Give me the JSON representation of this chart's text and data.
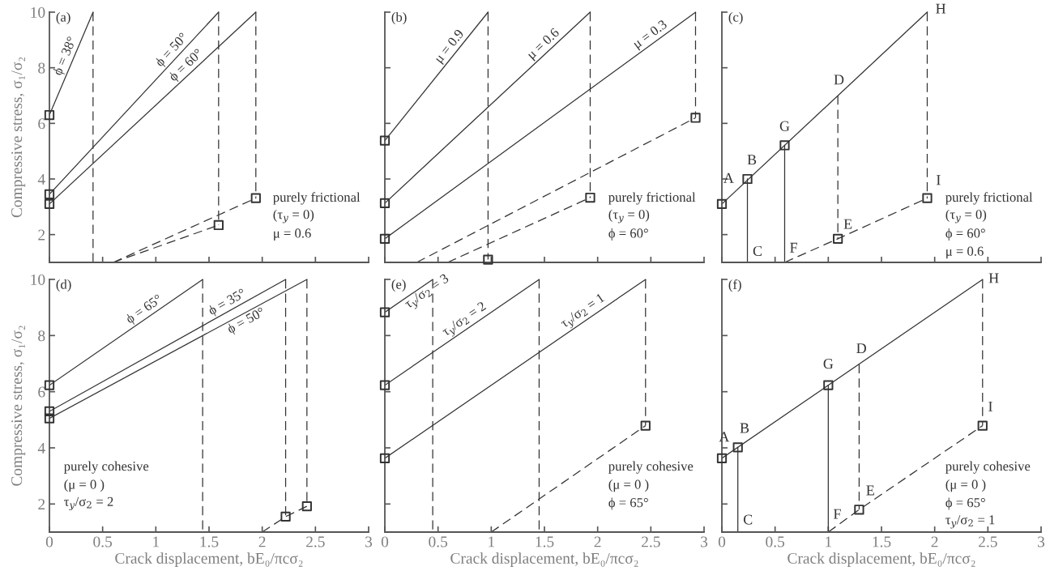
{
  "chart_data": [
    {
      "type": "line",
      "title": "(a)",
      "ylabel": "Compressive stress, σ₁/σ₂",
      "xlim": [
        0,
        3
      ],
      "ylim": [
        1,
        10
      ],
      "xticks": [
        0,
        0.5,
        1,
        1.5,
        2,
        2.5,
        3
      ],
      "yticks": [
        2,
        4,
        6,
        8,
        10
      ],
      "tick_labels": "y",
      "series": [
        {
          "name": "ϕ = 38°",
          "type": "line",
          "line_style": "solid",
          "color": "#333333",
          "x": [
            0,
            0.41
          ],
          "values": [
            6.3,
            10
          ]
        },
        {
          "name": "ϕ = 50°",
          "type": "line",
          "line_style": "solid",
          "color": "#333333",
          "x": [
            0,
            1.59
          ],
          "values": [
            3.45,
            10
          ]
        },
        {
          "name": "ϕ = 60°",
          "type": "line",
          "line_style": "solid",
          "color": "#333333",
          "x": [
            0,
            1.94
          ],
          "values": [
            3.1,
            10
          ]
        },
        {
          "type": "line",
          "line_style": "dashed",
          "color": "#333333",
          "x": [
            0.41,
            0.41
          ],
          "values": [
            10,
            1
          ]
        },
        {
          "type": "line",
          "line_style": "dashed",
          "color": "#333333",
          "x": [
            1.59,
            1.59
          ],
          "values": [
            10,
            2.34
          ]
        },
        {
          "type": "line",
          "line_style": "dashed",
          "color": "#333333",
          "x": [
            1.94,
            1.94
          ],
          "values": [
            10,
            3.31
          ]
        },
        {
          "type": "line",
          "line_style": "dashed",
          "color": "#333333",
          "x": [
            0.6,
            1.59
          ],
          "values": [
            1,
            2.34
          ]
        },
        {
          "type": "line",
          "line_style": "dashed",
          "color": "#333333",
          "x": [
            0.6,
            1.94
          ],
          "values": [
            1,
            3.31
          ]
        },
        {
          "type": "scatter",
          "marker": "square",
          "color": "#333333",
          "x": [
            0,
            0,
            0,
            1.59,
            1.94
          ],
          "values": [
            6.3,
            3.45,
            3.1,
            2.34,
            3.31
          ]
        }
      ],
      "annotations": [
        "purely frictional",
        "(τ$_{y}$ = 0)",
        "μ = 0.6"
      ]
    },
    {
      "type": "line",
      "title": "(b)",
      "xlim": [
        0,
        3
      ],
      "ylim": [
        1,
        10
      ],
      "xticks": [
        0,
        0.5,
        1,
        1.5,
        2,
        2.5,
        3
      ],
      "yticks": [
        2,
        4,
        6,
        8,
        10
      ],
      "tick_labels": false,
      "series": [
        {
          "name": "μ = 0.9",
          "type": "line",
          "line_style": "solid",
          "color": "#333333",
          "x": [
            0,
            0.97
          ],
          "values": [
            5.38,
            10
          ]
        },
        {
          "name": "μ = 0.6",
          "type": "line",
          "line_style": "solid",
          "color": "#333333",
          "x": [
            0,
            1.93
          ],
          "values": [
            3.13,
            10
          ]
        },
        {
          "name": "μ = 0.3",
          "type": "line",
          "line_style": "solid",
          "color": "#333333",
          "x": [
            0,
            2.92
          ],
          "values": [
            1.85,
            10
          ]
        },
        {
          "type": "line",
          "line_style": "dashed",
          "color": "#333333",
          "x": [
            0.97,
            0.97
          ],
          "values": [
            10,
            1.1
          ]
        },
        {
          "type": "line",
          "line_style": "dashed",
          "color": "#333333",
          "x": [
            1.93,
            1.93
          ],
          "values": [
            10,
            3.33
          ]
        },
        {
          "type": "line",
          "line_style": "dashed",
          "color": "#333333",
          "x": [
            2.92,
            2.92
          ],
          "values": [
            10,
            6.2
          ]
        },
        {
          "type": "line",
          "line_style": "dashed",
          "color": "#333333",
          "x": [
            0.59,
            1.93
          ],
          "values": [
            1,
            3.33
          ]
        },
        {
          "type": "line",
          "line_style": "dashed",
          "color": "#333333",
          "x": [
            0.3,
            2.92
          ],
          "values": [
            1,
            6.2
          ]
        },
        {
          "type": "scatter",
          "marker": "square",
          "color": "#333333",
          "x": [
            0,
            0,
            0,
            0.97,
            1.93,
            2.92
          ],
          "values": [
            5.38,
            3.13,
            1.85,
            1.1,
            3.33,
            6.2
          ]
        }
      ],
      "annotations": [
        "purely frictional",
        "(τ$_{y}$ = 0)",
        "ϕ = 60°"
      ]
    },
    {
      "type": "line",
      "title": "(c)",
      "xlim": [
        0,
        3
      ],
      "ylim": [
        1,
        10
      ],
      "xticks": [
        0,
        0.5,
        1,
        1.5,
        2,
        2.5,
        3
      ],
      "yticks": [
        2,
        4,
        6,
        8,
        10
      ],
      "tick_labels": false,
      "series": [
        {
          "type": "line",
          "line_style": "solid",
          "color": "#333333",
          "x": [
            0,
            1.93
          ],
          "values": [
            3.1,
            10
          ]
        },
        {
          "type": "line",
          "line_style": "solid",
          "color": "#333333",
          "x": [
            0.24,
            0.24
          ],
          "values": [
            4.0,
            1
          ]
        },
        {
          "type": "line",
          "line_style": "solid",
          "color": "#333333",
          "x": [
            0.59,
            0.59
          ],
          "values": [
            5.21,
            1
          ]
        },
        {
          "type": "line",
          "line_style": "dashed",
          "color": "#333333",
          "x": [
            1.09,
            1.09
          ],
          "values": [
            7.0,
            1.85
          ]
        },
        {
          "type": "line",
          "line_style": "dashed",
          "color": "#333333",
          "x": [
            1.93,
            1.93
          ],
          "values": [
            10,
            3.31
          ]
        },
        {
          "type": "line",
          "line_style": "dashed",
          "color": "#333333",
          "x": [
            0.59,
            1.09,
            1.93
          ],
          "values": [
            1,
            1.85,
            3.31
          ]
        },
        {
          "type": "scatter",
          "marker": "square",
          "color": "#333333",
          "x": [
            0,
            0.24,
            0.59,
            1.09,
            1.93
          ],
          "values": [
            3.1,
            4.0,
            5.21,
            1.85,
            3.31
          ]
        }
      ],
      "annotations": [
        {
          "text": "A",
          "x": 0,
          "y": 3.1
        },
        {
          "text": "B",
          "x": 0.24,
          "y": 4.0
        },
        {
          "text": "G",
          "x": 0.59,
          "y": 5.21
        },
        {
          "text": "D",
          "x": 1.09,
          "y": 7.0
        },
        {
          "text": "H",
          "x": 1.93,
          "y": 10
        },
        {
          "text": "I",
          "x": 1.93,
          "y": 3.31
        },
        {
          "text": "E",
          "x": 1.09,
          "y": 1.85
        },
        {
          "text": "C",
          "x": 0.24,
          "y": 1
        },
        {
          "text": "F",
          "x": 0.59,
          "y": 1
        },
        "purely frictional",
        "(τ$_{y}$ = 0)",
        "ϕ = 60°",
        "μ = 0.6"
      ]
    },
    {
      "type": "line",
      "title": "(d)",
      "xlabel": "Crack displacement, bE₀/πcσ₂",
      "ylabel": "Compressive stress, σ₁/σ₂",
      "xlim": [
        0,
        3
      ],
      "ylim": [
        1,
        10
      ],
      "xticks": [
        0,
        0.5,
        1,
        1.5,
        2,
        2.5,
        3
      ],
      "yticks": [
        2,
        4,
        6,
        8,
        10
      ],
      "series": [
        {
          "name": "ϕ = 65°",
          "type": "line",
          "line_style": "solid",
          "color": "#333333",
          "x": [
            0,
            1.44
          ],
          "values": [
            6.23,
            10
          ]
        },
        {
          "name": "ϕ = 35°",
          "type": "line",
          "line_style": "solid",
          "color": "#333333",
          "x": [
            0,
            2.22
          ],
          "values": [
            5.3,
            10
          ]
        },
        {
          "name": "ϕ = 50°",
          "type": "line",
          "line_style": "solid",
          "color": "#333333",
          "x": [
            0,
            2.42
          ],
          "values": [
            5.05,
            10
          ]
        },
        {
          "type": "line",
          "line_style": "dashed",
          "color": "#333333",
          "x": [
            1.44,
            1.44
          ],
          "values": [
            10,
            1
          ]
        },
        {
          "type": "line",
          "line_style": "dashed",
          "color": "#333333",
          "x": [
            2.22,
            2.22
          ],
          "values": [
            10,
            1.55
          ]
        },
        {
          "type": "line",
          "line_style": "dashed",
          "color": "#333333",
          "x": [
            2.42,
            2.42
          ],
          "values": [
            10,
            1.92
          ]
        },
        {
          "type": "line",
          "line_style": "dashed",
          "color": "#333333",
          "x": [
            2.0,
            2.22,
            2.42
          ],
          "values": [
            1,
            1.55,
            1.92
          ]
        },
        {
          "type": "scatter",
          "marker": "square",
          "color": "#333333",
          "x": [
            0,
            0,
            0,
            2.22,
            2.42
          ],
          "values": [
            6.23,
            5.3,
            5.05,
            1.55,
            1.92
          ]
        }
      ],
      "annotations": [
        "purely cohesive",
        "(μ = 0 )",
        "τ$_{y}$/σ$_{2}$ = 2"
      ]
    },
    {
      "type": "line",
      "title": "(e)",
      "xlabel": "Crack displacement, bE₀/πcσ₂",
      "xlim": [
        0,
        3
      ],
      "ylim": [
        1,
        10
      ],
      "xticks": [
        0,
        0.5,
        1,
        1.5,
        2,
        2.5,
        3
      ],
      "yticks": [
        2,
        4,
        6,
        8,
        10
      ],
      "tick_labels": "x",
      "series": [
        {
          "name": "τ$_{y}$/σ$_{2}$ = 3",
          "type": "line",
          "line_style": "solid",
          "color": "#333333",
          "x": [
            0,
            0.45
          ],
          "values": [
            8.83,
            10
          ]
        },
        {
          "name": "τ$_{y}$/σ$_{2}$ = 2",
          "type": "line",
          "line_style": "solid",
          "color": "#333333",
          "x": [
            0,
            1.45
          ],
          "values": [
            6.23,
            10
          ]
        },
        {
          "name": "τ$_{y}$/σ$_{2}$ = 1",
          "type": "line",
          "line_style": "solid",
          "color": "#333333",
          "x": [
            0,
            2.45
          ],
          "values": [
            3.63,
            10
          ]
        },
        {
          "type": "line",
          "line_style": "dashed",
          "color": "#333333",
          "x": [
            0.45,
            0.45
          ],
          "values": [
            10,
            1
          ]
        },
        {
          "type": "line",
          "line_style": "dashed",
          "color": "#333333",
          "x": [
            1.45,
            1.45
          ],
          "values": [
            10,
            1
          ]
        },
        {
          "type": "line",
          "line_style": "dashed",
          "color": "#333333",
          "x": [
            2.45,
            2.45
          ],
          "values": [
            10,
            4.79
          ]
        },
        {
          "type": "line",
          "line_style": "dashed",
          "color": "#333333",
          "x": [
            1.0,
            2.45
          ],
          "values": [
            1,
            4.79
          ]
        },
        {
          "type": "scatter",
          "marker": "square",
          "color": "#333333",
          "x": [
            0,
            0,
            0,
            2.45
          ],
          "values": [
            8.83,
            6.23,
            3.63,
            4.79
          ]
        }
      ],
      "annotations": [
        "purely cohesive",
        "(μ = 0 )",
        "ϕ = 65°"
      ]
    },
    {
      "type": "line",
      "title": "(f)",
      "xlabel": "Crack displacement, bE₀/πcσ₂",
      "xlim": [
        0,
        3
      ],
      "ylim": [
        1,
        10
      ],
      "xticks": [
        0,
        0.5,
        1,
        1.5,
        2,
        2.5,
        3
      ],
      "yticks": [
        2,
        4,
        6,
        8,
        10
      ],
      "tick_labels": "x",
      "series": [
        {
          "type": "line",
          "line_style": "solid",
          "color": "#333333",
          "x": [
            0,
            2.45
          ],
          "values": [
            3.63,
            10
          ]
        },
        {
          "type": "line",
          "line_style": "solid",
          "color": "#333333",
          "x": [
            0.15,
            0.15
          ],
          "values": [
            4.02,
            1
          ]
        },
        {
          "type": "line",
          "line_style": "solid",
          "color": "#333333",
          "x": [
            1.0,
            1.0
          ],
          "values": [
            6.23,
            1
          ]
        },
        {
          "type": "line",
          "line_style": "dashed",
          "color": "#333333",
          "x": [
            1.29,
            1.29
          ],
          "values": [
            6.98,
            1.8
          ]
        },
        {
          "type": "line",
          "line_style": "dashed",
          "color": "#333333",
          "x": [
            2.45,
            2.45
          ],
          "values": [
            10,
            4.79
          ]
        },
        {
          "type": "line",
          "line_style": "dashed",
          "color": "#333333",
          "x": [
            1.0,
            1.29,
            2.45
          ],
          "values": [
            1,
            1.8,
            4.79
          ]
        },
        {
          "type": "scatter",
          "marker": "square",
          "color": "#333333",
          "x": [
            0,
            0.15,
            1.0,
            1.29,
            2.45
          ],
          "values": [
            3.63,
            4.02,
            6.23,
            1.8,
            4.79
          ]
        }
      ],
      "annotations": [
        {
          "text": "A",
          "x": 0,
          "y": 3.63
        },
        {
          "text": "B",
          "x": 0.15,
          "y": 4.02
        },
        {
          "text": "G",
          "x": 1.0,
          "y": 6.23
        },
        {
          "text": "D",
          "x": 1.29,
          "y": 6.98
        },
        {
          "text": "H",
          "x": 2.45,
          "y": 10
        },
        {
          "text": "I",
          "x": 2.45,
          "y": 4.79
        },
        {
          "text": "E",
          "x": 1.29,
          "y": 1.8
        },
        {
          "text": "C",
          "x": 0.15,
          "y": 1
        },
        {
          "text": "F",
          "x": 1.0,
          "y": 1
        },
        "purely cohesive",
        "(μ = 0 )",
        "ϕ = 65°",
        "τ$_{y}$/σ$_{2}$ = 1"
      ]
    }
  ]
}
